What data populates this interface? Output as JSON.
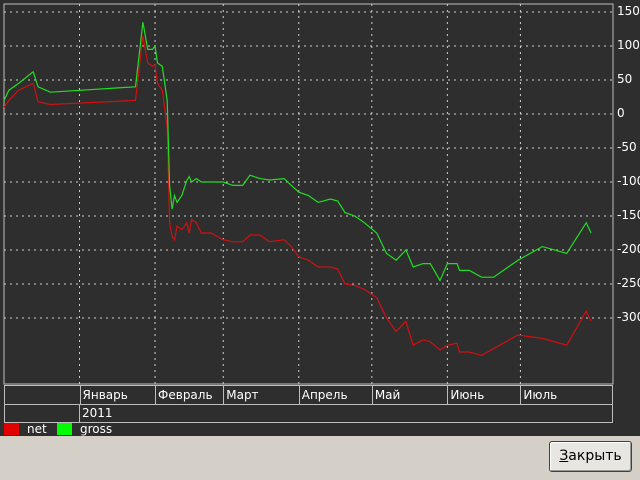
{
  "window": {
    "close_button_label": "Закрыть",
    "close_button_mnemonic": "З",
    "close_button_rest": "акрыть"
  },
  "colors": {
    "background": "#2e2e2e",
    "grid": "#cfcfcf",
    "net": "#d01010",
    "gross": "#22dd22",
    "text": "#ffffff"
  },
  "chart_data": {
    "type": "line",
    "title": "",
    "xlabel": "",
    "ylabel": "",
    "ylim": [
      -350,
      165
    ],
    "yticks": [
      150,
      100,
      50,
      0,
      -50,
      -100,
      -150,
      -200,
      -250,
      -300
    ],
    "ytick_labels": [
      "150",
      "100",
      "50",
      "0",
      "-50",
      "-100",
      "-150",
      "-200",
      "-250",
      "-300"
    ],
    "x_period_labels": [
      "Январь",
      "Февраль",
      "Март",
      "Апрель",
      "Май",
      "Июнь",
      "Июль"
    ],
    "x_year_label": "2011",
    "x_range": [
      "2010-12-01",
      "2011-08-08"
    ],
    "x_month_starts": [
      "2011-01-01",
      "2011-02-01",
      "2011-03-01",
      "2011-04-01",
      "2011-05-01",
      "2011-06-01",
      "2011-07-01"
    ],
    "grid": true,
    "legend_position": "bottom-left",
    "series": [
      {
        "name": "net",
        "color": "#d01010",
        "points": [
          [
            "2010-12-01",
            10
          ],
          [
            "2010-12-03",
            20
          ],
          [
            "2010-12-07",
            35
          ],
          [
            "2010-12-13",
            45
          ],
          [
            "2010-12-15",
            18
          ],
          [
            "2010-12-20",
            14
          ],
          [
            "2011-01-24",
            20
          ],
          [
            "2011-01-27",
            115
          ],
          [
            "2011-01-29",
            75
          ],
          [
            "2011-01-31",
            70
          ],
          [
            "2011-02-01",
            72
          ],
          [
            "2011-02-02",
            45
          ],
          [
            "2011-02-04",
            35
          ],
          [
            "2011-02-06",
            -20
          ],
          [
            "2011-02-07",
            -160
          ],
          [
            "2011-02-08",
            -180
          ],
          [
            "2011-02-09",
            -185
          ],
          [
            "2011-02-10",
            -165
          ],
          [
            "2011-02-12",
            -170
          ],
          [
            "2011-02-14",
            -160
          ],
          [
            "2011-02-15",
            -175
          ],
          [
            "2011-02-16",
            -155
          ],
          [
            "2011-02-18",
            -160
          ],
          [
            "2011-02-20",
            -175
          ],
          [
            "2011-02-24",
            -175
          ],
          [
            "2011-03-01",
            -185
          ],
          [
            "2011-03-05",
            -188
          ],
          [
            "2011-03-09",
            -188
          ],
          [
            "2011-03-12",
            -178
          ],
          [
            "2011-03-16",
            -178
          ],
          [
            "2011-03-20",
            -188
          ],
          [
            "2011-03-26",
            -185
          ],
          [
            "2011-03-29",
            -195
          ],
          [
            "2011-04-01",
            -210
          ],
          [
            "2011-04-05",
            -215
          ],
          [
            "2011-04-09",
            -225
          ],
          [
            "2011-04-14",
            -225
          ],
          [
            "2011-04-17",
            -228
          ],
          [
            "2011-04-20",
            -250
          ],
          [
            "2011-04-24",
            -252
          ],
          [
            "2011-04-28",
            -258
          ],
          [
            "2011-05-03",
            -270
          ],
          [
            "2011-05-07",
            -300
          ],
          [
            "2011-05-11",
            -320
          ],
          [
            "2011-05-15",
            -305
          ],
          [
            "2011-05-18",
            -340
          ],
          [
            "2011-05-22",
            -332
          ],
          [
            "2011-05-25",
            -335
          ],
          [
            "2011-05-29",
            -347
          ],
          [
            "2011-06-01",
            -340
          ],
          [
            "2011-06-05",
            -337
          ],
          [
            "2011-06-06",
            -350
          ],
          [
            "2011-06-10",
            -350
          ],
          [
            "2011-06-15",
            -355
          ],
          [
            "2011-06-20",
            -345
          ],
          [
            "2011-06-30",
            -325
          ],
          [
            "2011-07-10",
            -330
          ],
          [
            "2011-07-20",
            -340
          ],
          [
            "2011-07-28",
            -290
          ],
          [
            "2011-07-30",
            -305
          ]
        ]
      },
      {
        "name": "gross",
        "color": "#22dd22",
        "points": [
          [
            "2010-12-01",
            20
          ],
          [
            "2010-12-03",
            35
          ],
          [
            "2010-12-07",
            45
          ],
          [
            "2010-12-13",
            62
          ],
          [
            "2010-12-15",
            40
          ],
          [
            "2010-12-20",
            32
          ],
          [
            "2011-01-24",
            40
          ],
          [
            "2011-01-27",
            135
          ],
          [
            "2011-01-29",
            95
          ],
          [
            "2011-01-31",
            95
          ],
          [
            "2011-02-01",
            100
          ],
          [
            "2011-02-02",
            75
          ],
          [
            "2011-02-04",
            70
          ],
          [
            "2011-02-06",
            20
          ],
          [
            "2011-02-07",
            -105
          ],
          [
            "2011-02-08",
            -140
          ],
          [
            "2011-02-09",
            -120
          ],
          [
            "2011-02-10",
            -130
          ],
          [
            "2011-02-12",
            -120
          ],
          [
            "2011-02-14",
            -98
          ],
          [
            "2011-02-15",
            -92
          ],
          [
            "2011-02-16",
            -100
          ],
          [
            "2011-02-18",
            -95
          ],
          [
            "2011-02-20",
            -100
          ],
          [
            "2011-02-24",
            -100
          ],
          [
            "2011-03-01",
            -100
          ],
          [
            "2011-03-05",
            -105
          ],
          [
            "2011-03-09",
            -105
          ],
          [
            "2011-03-12",
            -90
          ],
          [
            "2011-03-16",
            -95
          ],
          [
            "2011-03-20",
            -97
          ],
          [
            "2011-03-26",
            -95
          ],
          [
            "2011-03-29",
            -105
          ],
          [
            "2011-04-01",
            -115
          ],
          [
            "2011-04-05",
            -120
          ],
          [
            "2011-04-09",
            -130
          ],
          [
            "2011-04-14",
            -125
          ],
          [
            "2011-04-17",
            -128
          ],
          [
            "2011-04-20",
            -145
          ],
          [
            "2011-04-24",
            -150
          ],
          [
            "2011-04-28",
            -160
          ],
          [
            "2011-05-03",
            -175
          ],
          [
            "2011-05-07",
            -205
          ],
          [
            "2011-05-11",
            -215
          ],
          [
            "2011-05-15",
            -200
          ],
          [
            "2011-05-18",
            -225
          ],
          [
            "2011-05-22",
            -220
          ],
          [
            "2011-05-25",
            -220
          ],
          [
            "2011-05-29",
            -245
          ],
          [
            "2011-06-01",
            -220
          ],
          [
            "2011-06-05",
            -220
          ],
          [
            "2011-06-06",
            -230
          ],
          [
            "2011-06-10",
            -230
          ],
          [
            "2011-06-15",
            -240
          ],
          [
            "2011-06-20",
            -240
          ],
          [
            "2011-06-30",
            -215
          ],
          [
            "2011-07-10",
            -195
          ],
          [
            "2011-07-20",
            -205
          ],
          [
            "2011-07-28",
            -160
          ],
          [
            "2011-07-30",
            -175
          ]
        ]
      }
    ]
  }
}
